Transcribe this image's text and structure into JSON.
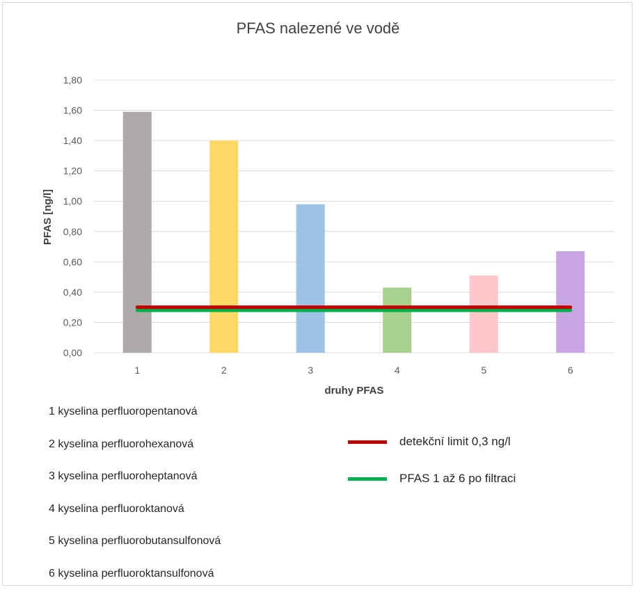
{
  "chart_data": {
    "type": "bar",
    "title": "PFAS nalezené ve vodě",
    "xlabel": "druhy PFAS",
    "ylabel": "PFAS [ng/l]",
    "categories": [
      "1",
      "2",
      "3",
      "4",
      "5",
      "6"
    ],
    "values": [
      1.59,
      1.4,
      0.98,
      0.43,
      0.51,
      0.67
    ],
    "bar_colors": [
      "#aeaaaa",
      "#ffd966",
      "#9dc3e6",
      "#a9d18e",
      "#ffc7c7",
      "#c9a6e3"
    ],
    "ylim": [
      0,
      1.8
    ],
    "yticks": [
      "0,00",
      "0,20",
      "0,40",
      "0,60",
      "0,80",
      "1,00",
      "1,20",
      "1,40",
      "1,60",
      "1,80"
    ],
    "grid": true,
    "lines": [
      {
        "name": "detekční limit 0,3 ng/l",
        "value": 0.3,
        "color": "#c00000"
      },
      {
        "name": "PFAS 1 až 6 po filtraci",
        "value": 0.28,
        "color": "#00b050"
      }
    ],
    "legend_position": "bottom-right"
  },
  "category_key": [
    "1 kyselina perfluoropentanová",
    "2 kyselina perfluorohexanová",
    "3 kyselina perfluoroheptanová",
    "4 kyselina perfluoroktanová",
    "5 kyselina perfluorobutansulfonová",
    "6 kyselina perfluoroktansulfonová"
  ]
}
